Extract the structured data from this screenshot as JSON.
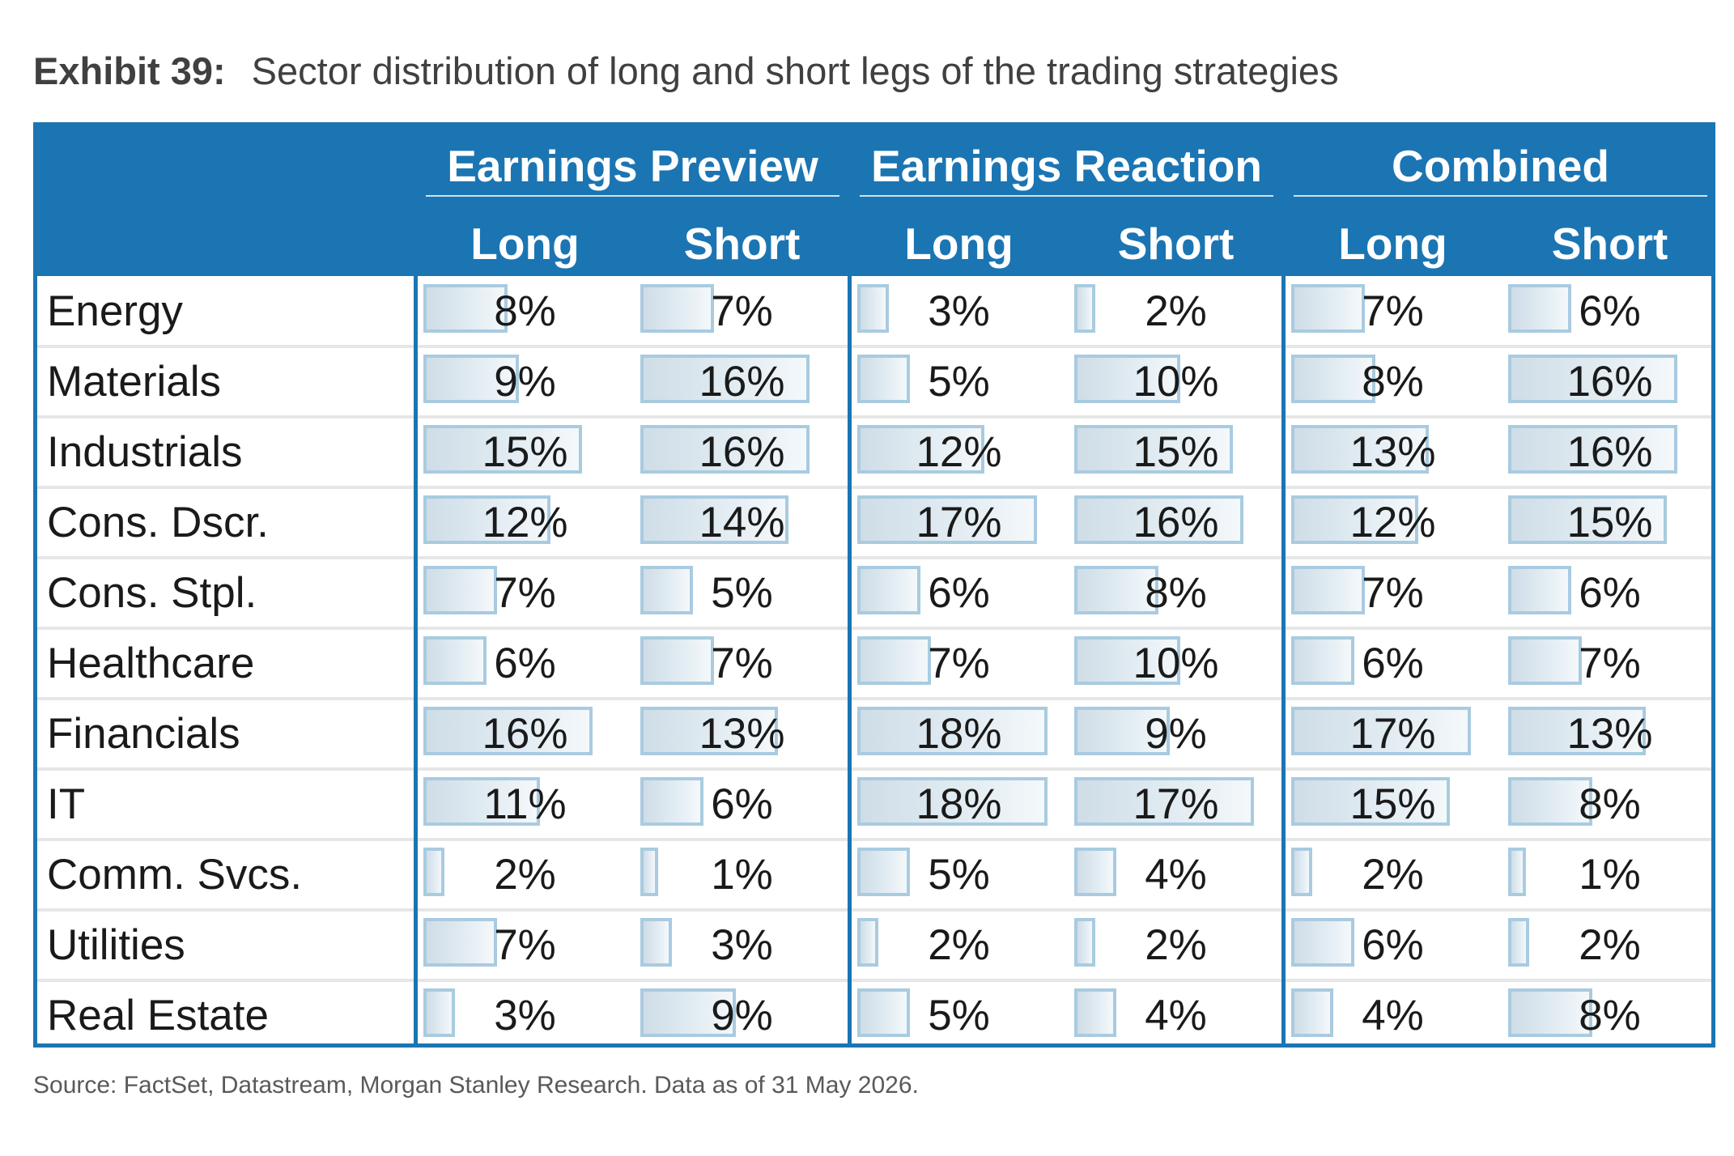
{
  "title": {
    "label": "Exhibit 39:",
    "text": "Sector distribution of long and short legs of the trading strategies"
  },
  "source": "Source: FactSet, Datastream, Morgan Stanley Research. Data as of 31 May 2026.",
  "colors": {
    "header_blue": "#1b75b3",
    "bar_border": "#a9cbe0",
    "bar_fill": "#d9e6ee"
  },
  "chart_data": {
    "type": "table",
    "groups": [
      {
        "name": "Earnings Preview",
        "columns": [
          "Long",
          "Short"
        ]
      },
      {
        "name": "Earnings Reaction",
        "columns": [
          "Long",
          "Short"
        ]
      },
      {
        "name": "Combined",
        "columns": [
          "Long",
          "Short"
        ]
      }
    ],
    "bar_max_value": 18,
    "rows": [
      {
        "sector": "Energy",
        "values": [
          8,
          7,
          3,
          2,
          7,
          6
        ]
      },
      {
        "sector": "Materials",
        "values": [
          9,
          16,
          5,
          10,
          8,
          16
        ]
      },
      {
        "sector": "Industrials",
        "values": [
          15,
          16,
          12,
          15,
          13,
          16
        ]
      },
      {
        "sector": "Cons. Dscr.",
        "values": [
          12,
          14,
          17,
          16,
          12,
          15
        ]
      },
      {
        "sector": "Cons. Stpl.",
        "values": [
          7,
          5,
          6,
          8,
          7,
          6
        ]
      },
      {
        "sector": "Healthcare",
        "values": [
          6,
          7,
          7,
          10,
          6,
          7
        ]
      },
      {
        "sector": "Financials",
        "values": [
          16,
          13,
          18,
          9,
          17,
          13
        ]
      },
      {
        "sector": "IT",
        "values": [
          11,
          6,
          18,
          17,
          15,
          8
        ]
      },
      {
        "sector": "Comm. Svcs.",
        "values": [
          2,
          1,
          5,
          4,
          2,
          1
        ]
      },
      {
        "sector": "Utilities",
        "values": [
          7,
          3,
          2,
          2,
          6,
          2
        ]
      },
      {
        "sector": "Real Estate",
        "values": [
          3,
          9,
          5,
          4,
          4,
          8
        ]
      }
    ],
    "value_suffix": "%"
  }
}
